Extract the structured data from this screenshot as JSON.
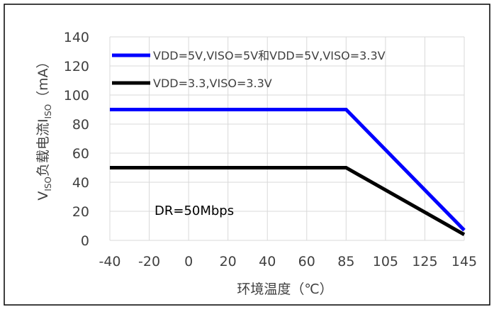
{
  "chart_data": {
    "type": "line",
    "x": [
      -40,
      85,
      145
    ],
    "xlim": [
      -40,
      145
    ],
    "ylim": [
      0,
      140
    ],
    "x_ticks": [
      -40,
      -20,
      0,
      20,
      40,
      60,
      85,
      105,
      125,
      145
    ],
    "y_ticks": [
      0,
      20,
      40,
      60,
      80,
      100,
      120,
      140
    ],
    "xlabel": "环境温度（℃）",
    "ylabel": {
      "v": "V",
      "iso1": "ISO",
      "mid": "负载电流I",
      "iso2": "ISO",
      "unit": "（mA）"
    },
    "grid": true,
    "legend_position": "top-left",
    "annotation": "DR=50Mbps",
    "series": [
      {
        "name": "VDD=5V,VISO=5V和VDD=5V,VISO=3.3V",
        "color": "#0000ff",
        "values": [
          90,
          90,
          7
        ]
      },
      {
        "name": "VDD=3.3,VISO=3.3V",
        "color": "#000000",
        "values": [
          50,
          50,
          4
        ]
      }
    ]
  }
}
